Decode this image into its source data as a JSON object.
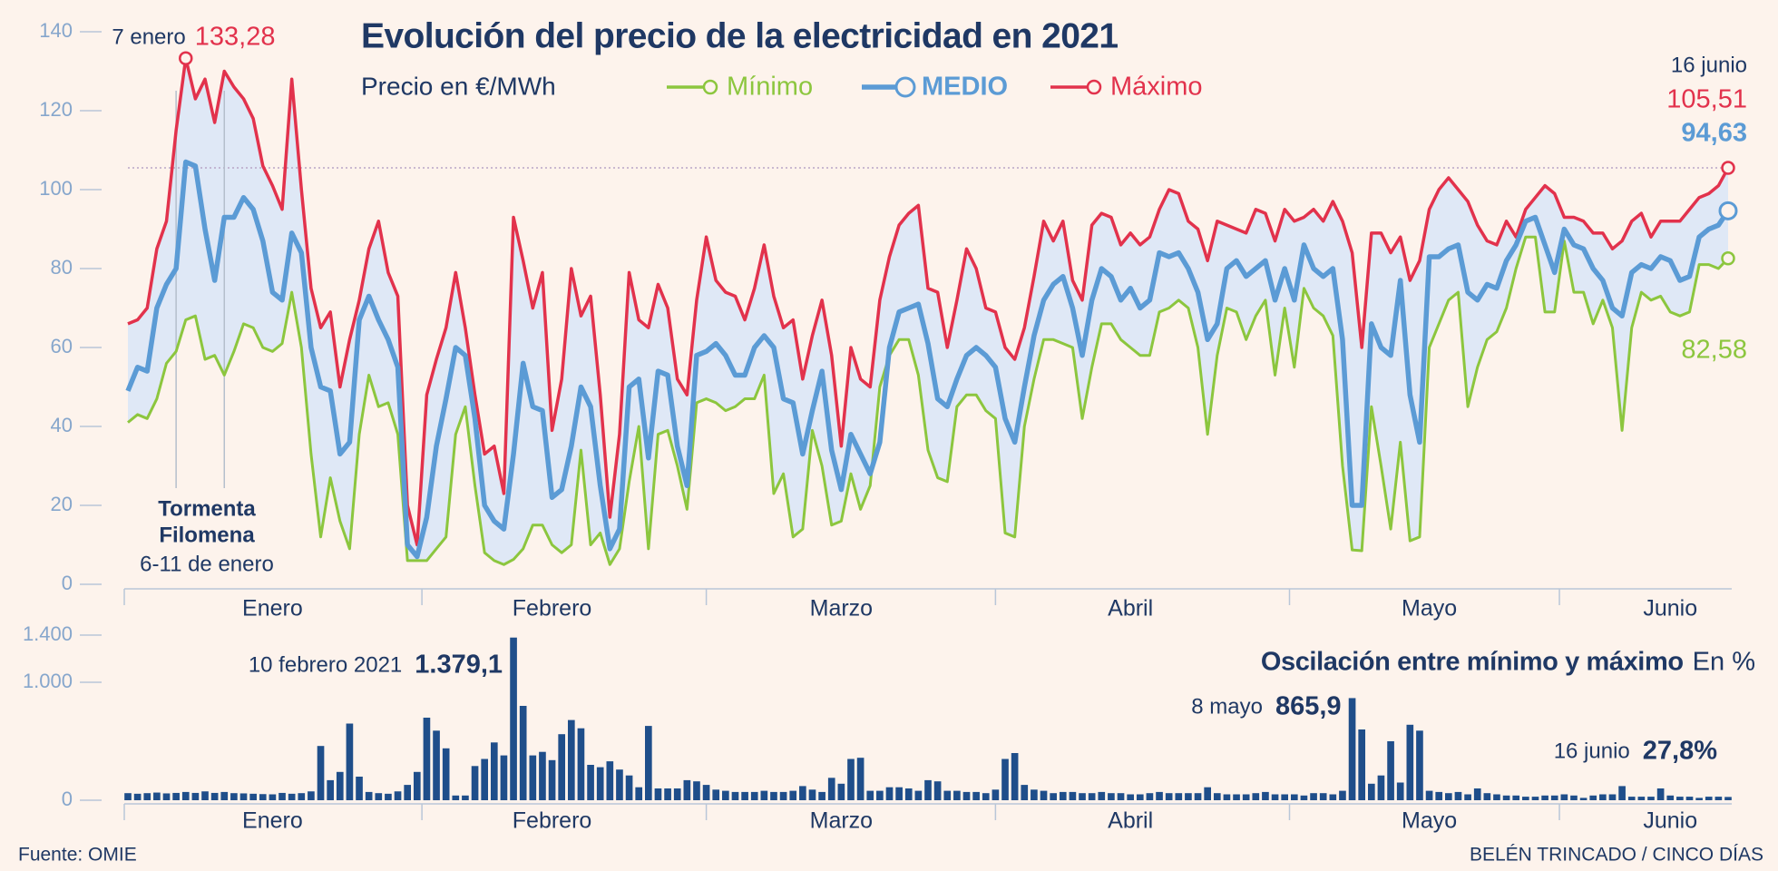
{
  "chart_data": [
    {
      "type": "line",
      "title": "Evolución del precio de la electricidad en 2021",
      "subtitle": "Precio en €/MWh",
      "categories": [
        null,
        null,
        null,
        null,
        null,
        null,
        null,
        null,
        null,
        null,
        null,
        null,
        null,
        null,
        null,
        "Enero",
        null,
        null,
        null,
        null,
        null,
        null,
        null,
        null,
        null,
        null,
        null,
        null,
        null,
        null,
        null,
        null,
        null,
        null,
        null,
        null,
        null,
        null,
        null,
        null,
        null,
        null,
        null,
        null,
        "Febrero",
        null,
        null,
        null,
        null,
        null,
        null,
        null,
        null,
        null,
        null,
        null,
        null,
        null,
        null,
        null,
        null,
        null,
        null,
        null,
        null,
        null,
        null,
        null,
        null,
        null,
        null,
        null,
        null,
        null,
        "Marzo",
        null,
        null,
        null,
        null,
        null,
        null,
        null,
        null,
        null,
        null,
        null,
        null,
        null,
        null,
        null,
        null,
        null,
        null,
        null,
        null,
        null,
        null,
        null,
        null,
        null,
        null,
        null,
        null,
        null,
        "Abril",
        null,
        null,
        null,
        null,
        null,
        null,
        null,
        null,
        null,
        null,
        null,
        null,
        null,
        null,
        null,
        null,
        null,
        null,
        null,
        null,
        null,
        null,
        null,
        null,
        null,
        null,
        null,
        null,
        null,
        null,
        "Mayo",
        null,
        null,
        null,
        null,
        null,
        null,
        null,
        null,
        null,
        null,
        null,
        null,
        null,
        null,
        null,
        null,
        null,
        null,
        null,
        null,
        null,
        null,
        null,
        null,
        "Junio",
        null,
        null,
        null,
        null,
        null,
        null
      ],
      "series": [
        {
          "name": "Mínimo",
          "color": "#8cc63e",
          "values": [
            41,
            43,
            42,
            47,
            56,
            59,
            67,
            68,
            57,
            58,
            53,
            59,
            66,
            65,
            60,
            59,
            61,
            74,
            60,
            33,
            12,
            27,
            16,
            9,
            38,
            53,
            45,
            46,
            38,
            6,
            6,
            6,
            9,
            12,
            38,
            45,
            25,
            8,
            6,
            5,
            6.3,
            9,
            15,
            15,
            10,
            8,
            10,
            34,
            10,
            13,
            5,
            9,
            26,
            40,
            9,
            38,
            39,
            30,
            19,
            46,
            47,
            46,
            44,
            45,
            47,
            47,
            53,
            23,
            28,
            12,
            14,
            39,
            30,
            15,
            16,
            28,
            19,
            25,
            50,
            58,
            62,
            62,
            53,
            34,
            27,
            26,
            45,
            48,
            48,
            44,
            42,
            13,
            12,
            40,
            52,
            62,
            62,
            61,
            60,
            42,
            55,
            66,
            66,
            62,
            60,
            58,
            58,
            69,
            70,
            72,
            70,
            60,
            38,
            58,
            70,
            69,
            62,
            68,
            72,
            53,
            70,
            55,
            75,
            70,
            68,
            63,
            30,
            8.7,
            8.5,
            45,
            30,
            14,
            36,
            11,
            12,
            60,
            66,
            72,
            74,
            45,
            55,
            62,
            64,
            70,
            80,
            88,
            88,
            69,
            69,
            87,
            74,
            74,
            66,
            72,
            65,
            39,
            65,
            74,
            72,
            73,
            69,
            68,
            69,
            81,
            81,
            80,
            82.58
          ],
          "value_labels": {
            "166": "82,58"
          }
        },
        {
          "name": "MEDIO",
          "color": "#5b9bd5",
          "values": [
            49,
            55,
            54,
            70,
            76,
            80,
            107,
            106,
            90,
            77,
            93,
            93,
            98,
            95,
            87,
            74,
            72,
            89,
            84,
            60,
            50,
            49,
            33,
            36,
            67,
            73,
            67,
            62,
            55,
            10,
            7,
            17,
            35,
            47,
            60,
            58,
            42,
            20,
            16,
            14,
            33,
            56,
            45,
            44,
            22,
            24,
            35,
            50,
            45,
            25,
            9,
            14,
            50,
            52,
            32,
            54,
            53,
            35,
            25,
            58,
            59,
            61,
            58,
            53,
            53,
            60,
            63,
            60,
            47,
            46,
            33,
            44,
            54,
            34,
            24,
            38,
            33,
            28,
            36,
            60,
            69,
            70,
            71,
            61,
            47,
            45,
            52,
            58,
            60,
            58,
            55,
            42,
            36,
            50,
            63,
            72,
            76,
            78,
            70,
            58,
            72,
            80,
            78,
            72,
            75,
            70,
            72,
            84,
            83,
            84,
            80,
            74,
            62,
            66,
            80,
            82,
            78,
            80,
            82,
            72,
            80,
            72,
            86,
            80,
            78,
            80,
            62,
            20,
            20,
            66,
            60,
            58,
            77,
            48,
            36,
            83,
            83,
            85,
            86,
            74,
            72,
            76,
            75,
            82,
            86,
            92,
            93,
            86,
            79,
            90,
            86,
            85,
            80,
            77,
            70,
            68,
            79,
            81,
            80,
            83,
            82,
            77,
            78,
            88,
            90,
            91,
            94.63
          ],
          "value_labels": {
            "166": "94,63"
          }
        },
        {
          "name": "Máximo",
          "color": "#e2324c",
          "values": [
            66,
            67,
            70,
            85,
            92,
            115,
            133.28,
            123,
            128,
            117,
            130,
            126,
            123,
            118,
            106,
            101,
            95,
            128,
            100,
            75,
            65,
            69,
            50,
            62,
            72,
            85,
            92,
            79,
            73,
            20,
            10,
            48,
            57,
            65,
            79,
            65,
            48,
            33,
            35,
            23,
            93,
            82,
            70,
            79,
            39,
            52,
            80,
            68,
            73,
            48,
            17,
            38,
            79,
            67,
            65,
            76,
            70,
            52,
            48,
            72,
            88,
            77,
            74,
            73,
            67,
            75,
            86,
            73,
            65,
            67,
            52,
            63,
            72,
            58,
            35,
            60,
            52,
            50,
            72,
            83,
            91,
            94,
            96,
            75,
            74,
            60,
            72,
            85,
            80,
            70,
            69,
            60,
            57,
            65,
            78,
            92,
            87,
            92,
            77,
            72,
            91,
            94,
            93,
            86,
            89,
            86,
            88,
            95,
            100,
            99,
            92,
            90,
            82,
            92,
            91,
            90,
            89,
            95,
            94,
            87,
            95,
            92,
            93,
            95,
            92,
            97,
            92,
            84,
            60,
            89,
            89,
            84,
            88,
            77,
            82,
            95,
            100,
            103,
            100,
            97,
            91,
            87,
            86,
            92,
            88,
            95,
            98,
            101,
            99,
            93,
            93,
            92,
            89,
            89,
            85,
            87,
            92,
            94,
            88,
            92,
            92,
            92,
            95,
            98,
            99,
            101,
            105.51
          ],
          "value_labels": {
            "6": "133,28",
            "166": "105,51"
          }
        }
      ],
      "band_color": "#dfe8f6",
      "ylim": [
        0,
        140
      ],
      "yticks": [
        0,
        20,
        40,
        60,
        80,
        100,
        120,
        140
      ],
      "annotations": [
        "7 enero",
        "16 junio"
      ],
      "event_title": [
        "Tormenta",
        "Filomena"
      ],
      "event_dates": "6-11 de enero"
    },
    {
      "type": "bar",
      "title": "Oscilación entre mínimo y máximo",
      "unit": "En %",
      "categories": [
        null,
        null,
        null,
        null,
        null,
        null,
        null,
        null,
        null,
        null,
        null,
        null,
        null,
        null,
        null,
        "Enero",
        null,
        null,
        null,
        null,
        null,
        null,
        null,
        null,
        null,
        null,
        null,
        null,
        null,
        null,
        null,
        null,
        null,
        null,
        null,
        null,
        null,
        null,
        null,
        null,
        null,
        null,
        null,
        null,
        "Febrero",
        null,
        null,
        null,
        null,
        null,
        null,
        null,
        null,
        null,
        null,
        null,
        null,
        null,
        null,
        null,
        null,
        null,
        null,
        null,
        null,
        null,
        null,
        null,
        null,
        null,
        null,
        null,
        null,
        null,
        "Marzo",
        null,
        null,
        null,
        null,
        null,
        null,
        null,
        null,
        null,
        null,
        null,
        null,
        null,
        null,
        null,
        null,
        null,
        null,
        null,
        null,
        null,
        null,
        null,
        null,
        null,
        null,
        null,
        null,
        null,
        "Abril",
        null,
        null,
        null,
        null,
        null,
        null,
        null,
        null,
        null,
        null,
        null,
        null,
        null,
        null,
        null,
        null,
        null,
        null,
        null,
        null,
        null,
        null,
        null,
        null,
        null,
        null,
        null,
        null,
        null,
        null,
        "Mayo",
        null,
        null,
        null,
        null,
        null,
        null,
        null,
        null,
        null,
        null,
        null,
        null,
        null,
        null,
        null,
        null,
        null,
        null,
        null,
        null,
        null,
        null,
        null,
        null,
        "Junio",
        null,
        null,
        null,
        null,
        null,
        null
      ],
      "values": [
        60,
        55,
        60,
        65,
        58,
        62,
        70,
        62,
        75,
        62,
        70,
        60,
        58,
        55,
        52,
        50,
        62,
        55,
        60,
        75,
        460,
        170,
        240,
        650,
        200,
        70,
        60,
        55,
        75,
        130,
        240,
        700,
        590,
        440,
        40,
        40,
        290,
        350,
        490,
        380,
        1379.1,
        800,
        380,
        410,
        340,
        560,
        680,
        610,
        300,
        280,
        330,
        260,
        210,
        110,
        630,
        100,
        100,
        100,
        170,
        160,
        130,
        90,
        80,
        70,
        70,
        70,
        80,
        70,
        70,
        80,
        120,
        90,
        70,
        190,
        140,
        350,
        360,
        80,
        80,
        110,
        110,
        100,
        80,
        170,
        160,
        80,
        80,
        70,
        70,
        60,
        90,
        350,
        400,
        130,
        90,
        80,
        60,
        70,
        70,
        60,
        60,
        70,
        60,
        60,
        50,
        50,
        60,
        70,
        60,
        60,
        60,
        60,
        110,
        60,
        50,
        50,
        50,
        60,
        70,
        50,
        50,
        50,
        40,
        60,
        60,
        50,
        80,
        865.9,
        600,
        140,
        210,
        500,
        150,
        640,
        590,
        80,
        70,
        60,
        70,
        50,
        100,
        60,
        50,
        40,
        40,
        30,
        30,
        40,
        40,
        50,
        40,
        20,
        40,
        50,
        50,
        120,
        30,
        30,
        30,
        100,
        40,
        30,
        30,
        20,
        30,
        30,
        27.8
      ],
      "value_labels": {
        "40": "1.379,1",
        "127": "865,9",
        "166": "27,8%"
      },
      "color": "#1f4e8a",
      "ylim": [
        0,
        1400
      ],
      "yticks": [
        0,
        {
          "value": 1000,
          "label": "1.000"
        },
        {
          "value": 1400,
          "label": "1.400"
        }
      ],
      "annotations": [
        "10 febrero 2021",
        "8 mayo",
        "16 junio"
      ]
    }
  ],
  "source": "Fuente: OMIE",
  "credit": "BELÉN TRINCADO / CINCO DÍAS"
}
